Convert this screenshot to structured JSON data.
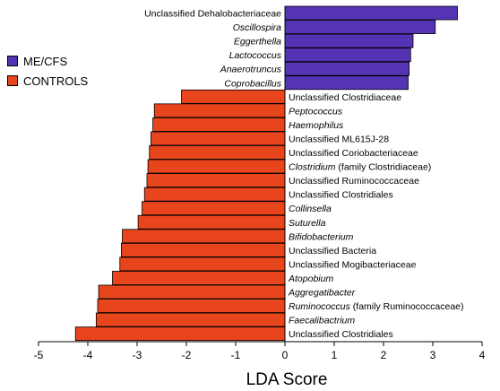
{
  "chart_data": {
    "type": "bar",
    "orientation": "horizontal",
    "xlabel": "LDA Score",
    "xlim": [
      -5,
      4
    ],
    "xticks": [
      "-5",
      "-4",
      "-3",
      "-2",
      "-1",
      "0",
      "1",
      "2",
      "3",
      "4"
    ],
    "colors": {
      "me_cfs": "#5533b5",
      "controls": "#e8451c"
    },
    "legend": [
      {
        "name": "ME/CFS",
        "color": "#5533b5"
      },
      {
        "name": "CONTROLS",
        "color": "#e8451c"
      }
    ],
    "legend_position": "left",
    "bars": [
      {
        "label": "Unclassified Dehalobacteriaceae",
        "value": 3.5,
        "group": "ME/CFS",
        "italic": false
      },
      {
        "label": "Oscillospira",
        "value": 3.05,
        "group": "ME/CFS",
        "italic": true
      },
      {
        "label": "Eggerthella",
        "value": 2.6,
        "group": "ME/CFS",
        "italic": true
      },
      {
        "label": "Lactococcus",
        "value": 2.55,
        "group": "ME/CFS",
        "italic": true
      },
      {
        "label": "Anaerotruncus",
        "value": 2.52,
        "group": "ME/CFS",
        "italic": true
      },
      {
        "label": "Coprobacillus",
        "value": 2.5,
        "group": "ME/CFS",
        "italic": true
      },
      {
        "label": "Unclassified Clostridiaceae",
        "value": -2.1,
        "group": "CONTROLS",
        "italic": false
      },
      {
        "label": "Peptococcus",
        "value": -2.65,
        "group": "CONTROLS",
        "italic": true
      },
      {
        "label": "Haemophilus",
        "value": -2.68,
        "group": "CONTROLS",
        "italic": true
      },
      {
        "label": "Unclassified ML615J-28",
        "value": -2.72,
        "group": "CONTROLS",
        "italic": false
      },
      {
        "label": "Unclassified Coriobacteriaceae",
        "value": -2.75,
        "group": "CONTROLS",
        "italic": false
      },
      {
        "label": "Clostridium",
        "suffix": " (family Clostridiaceae)",
        "value": -2.78,
        "group": "CONTROLS",
        "italic": true
      },
      {
        "label": "Unclassified Ruminococcaceae",
        "value": -2.8,
        "group": "CONTROLS",
        "italic": false
      },
      {
        "label": "Unclassified Clostridiales",
        "value": -2.85,
        "group": "CONTROLS",
        "italic": false
      },
      {
        "label": "Collinsella",
        "value": -2.9,
        "group": "CONTROLS",
        "italic": true
      },
      {
        "label": "Suturella",
        "value": -2.98,
        "group": "CONTROLS",
        "italic": true
      },
      {
        "label": "Bifidobacterium",
        "value": -3.3,
        "group": "CONTROLS",
        "italic": true
      },
      {
        "label": "Unclassified Bacteria",
        "value": -3.32,
        "group": "CONTROLS",
        "italic": false
      },
      {
        "label": "Unclassified Mogibacteriaceae",
        "value": -3.35,
        "group": "CONTROLS",
        "italic": false
      },
      {
        "label": "Atopobium",
        "value": -3.5,
        "group": "CONTROLS",
        "italic": true
      },
      {
        "label": "Aggregatibacter",
        "value": -3.78,
        "group": "CONTROLS",
        "italic": true
      },
      {
        "label": "Ruminococcus",
        "suffix": " (family Ruminococcaceae)",
        "value": -3.8,
        "group": "CONTROLS",
        "italic": true
      },
      {
        "label": "Faecalibactrium",
        "value": -3.83,
        "group": "CONTROLS",
        "italic": true
      },
      {
        "label": "Unclassified Clostridiales",
        "value": -4.25,
        "group": "CONTROLS",
        "italic": false
      }
    ]
  }
}
